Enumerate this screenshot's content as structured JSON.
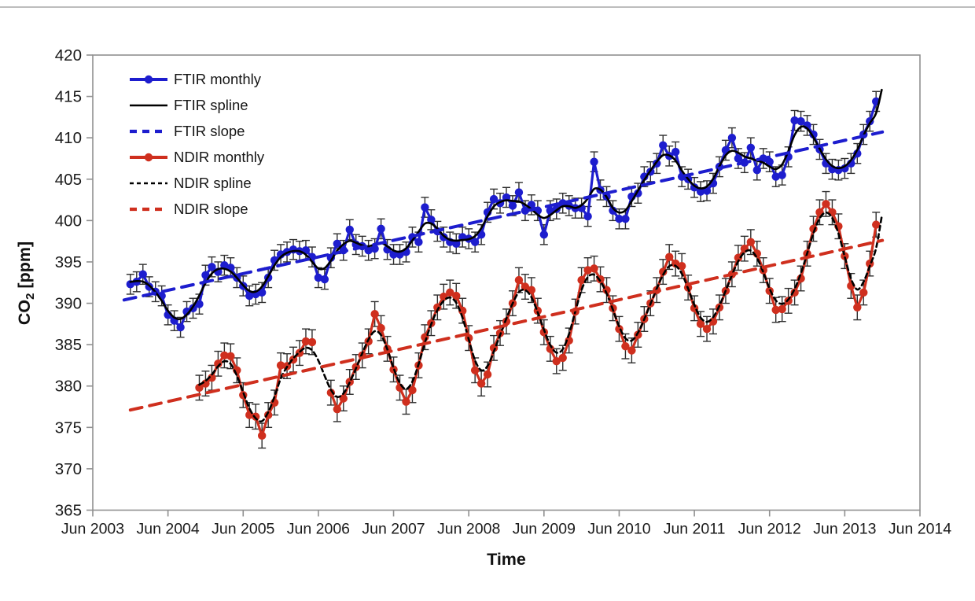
{
  "chart_data": {
    "type": "line",
    "title": "",
    "xlabel": "Time",
    "ylabel": "CO2 [ppm]",
    "ylabel_parts": {
      "main": "CO",
      "sub": "2",
      "rest": " [ppm]"
    },
    "ylim": [
      365,
      420
    ],
    "yticks": [
      365,
      370,
      375,
      380,
      385,
      390,
      395,
      400,
      405,
      410,
      415,
      420
    ],
    "xticks": [
      "Jun 2003",
      "Jun 2004",
      "Jun 2005",
      "Jun 2006",
      "Jun 2007",
      "Jun 2008",
      "Jun 2009",
      "Jun 2010",
      "Jun 2011",
      "Jun 2012",
      "Jun 2013",
      "Jun 2014"
    ],
    "grid": false,
    "legend_position": "top-left-inside",
    "colors": {
      "ftir": "#1d1dce",
      "ndir": "#cf2f1e",
      "spline": "#000000",
      "errorbar": "#2e2e2e",
      "axis": "#909090",
      "text": "#1a1a1a"
    },
    "legend": [
      {
        "label": "FTIR monthly",
        "swatch": "ftir-monthly"
      },
      {
        "label": "FTIR spline",
        "swatch": "ftir-spline"
      },
      {
        "label": "FTIR slope",
        "swatch": "ftir-slope"
      },
      {
        "label": "NDIR monthly",
        "swatch": "ndir-monthly"
      },
      {
        "label": "NDIR spline",
        "swatch": "ndir-spline"
      },
      {
        "label": "NDIR slope",
        "swatch": "ndir-slope"
      }
    ],
    "series": [
      {
        "name": "FTIR monthly",
        "kind": "markers+line",
        "color_key": "ftir",
        "error": 1.2,
        "start_month": "2003-12",
        "values": [
          392.3,
          392.6,
          393.5,
          392.0,
          391.4,
          390.9,
          388.6,
          387.9,
          387.1,
          389.0,
          389.4,
          389.9,
          393.4,
          394.4,
          393.8,
          394.6,
          394.3,
          393.1,
          392.1,
          390.9,
          391.1,
          391.3,
          393.1,
          395.2,
          395.9,
          396.2,
          396.5,
          396.3,
          396.4,
          395.6,
          393.1,
          392.9,
          395.5,
          397.2,
          396.4,
          398.9,
          397.1,
          396.9,
          396.4,
          396.6,
          399.0,
          396.5,
          395.9,
          395.9,
          396.2,
          398.0,
          397.4,
          401.6,
          400.1,
          398.7,
          398.0,
          397.4,
          397.2,
          398.0,
          397.8,
          397.4,
          398.3,
          401.0,
          402.6,
          402.1,
          402.8,
          401.8,
          403.4,
          401.2,
          401.9,
          401.2,
          398.3,
          401.2,
          401.4,
          402.1,
          401.8,
          401.5,
          401.5,
          400.5,
          407.1,
          403.7,
          402.9,
          401.2,
          400.2,
          400.2,
          402.9,
          403.3,
          405.3,
          405.9,
          406.9,
          409.1,
          407.8,
          408.3,
          405.3,
          405.0,
          404.0,
          403.5,
          403.6,
          404.5,
          406.5,
          408.5,
          410.0,
          407.5,
          407.0,
          408.8,
          406.1,
          407.5,
          407.1,
          405.3,
          405.5,
          407.7,
          412.1,
          412.0,
          411.5,
          410.4,
          408.6,
          406.9,
          406.2,
          406.1,
          406.3,
          406.9,
          408.1,
          410.4,
          412.0,
          414.4
        ]
      },
      {
        "name": "FTIR spline",
        "kind": "spline",
        "color_key": "spline",
        "dash": null,
        "source": "FTIR monthly",
        "end_tip": 415.8
      },
      {
        "name": "FTIR slope",
        "kind": "trend",
        "color_key": "ftir",
        "start_month": "2003-11",
        "start_value": 390.4,
        "end_month": "2013-12",
        "end_value": 410.7
      },
      {
        "name": "NDIR monthly",
        "kind": "markers+line",
        "color_key": "ndir",
        "error": 1.5,
        "start_month": "2004-11",
        "values": [
          379.8,
          380.3,
          381.0,
          382.7,
          383.7,
          383.6,
          381.9,
          378.9,
          376.5,
          376.3,
          374.0,
          376.5,
          378.0,
          382.5,
          382.4,
          383.2,
          384.0,
          385.4,
          385.3,
          null,
          null,
          379.2,
          377.2,
          378.5,
          380.5,
          382.3,
          383.7,
          385.4,
          388.7,
          387.0,
          384.5,
          382.0,
          379.8,
          378.1,
          379.5,
          382.5,
          385.9,
          387.6,
          389.5,
          390.8,
          391.3,
          390.9,
          389.1,
          385.8,
          381.9,
          380.3,
          381.4,
          384.6,
          386.4,
          387.8,
          390.0,
          392.8,
          392.0,
          391.6,
          389.1,
          386.5,
          384.5,
          383.0,
          383.4,
          385.5,
          389.0,
          392.8,
          394.0,
          394.2,
          392.9,
          391.6,
          389.4,
          386.9,
          384.8,
          384.3,
          386.2,
          388.1,
          390.0,
          391.6,
          393.8,
          395.6,
          394.8,
          394.5,
          391.9,
          389.4,
          387.5,
          386.9,
          387.8,
          389.5,
          391.5,
          393.5,
          395.5,
          396.6,
          397.4,
          396.0,
          394.0,
          391.5,
          389.2,
          389.3,
          390.3,
          391.3,
          393.0,
          396.0,
          399.0,
          401.0,
          402.0,
          401.0,
          399.3,
          395.7,
          392.1,
          389.5,
          391.3,
          394.8,
          399.5
        ]
      },
      {
        "name": "NDIR spline",
        "kind": "spline",
        "color_key": "spline",
        "dash": "6 4.5",
        "source": "NDIR monthly",
        "end_tip": 400.5
      },
      {
        "name": "NDIR slope",
        "kind": "trend",
        "color_key": "ndir",
        "start_month": "2003-12",
        "start_value": 377.1,
        "end_month": "2013-12",
        "end_value": 397.6
      }
    ]
  }
}
